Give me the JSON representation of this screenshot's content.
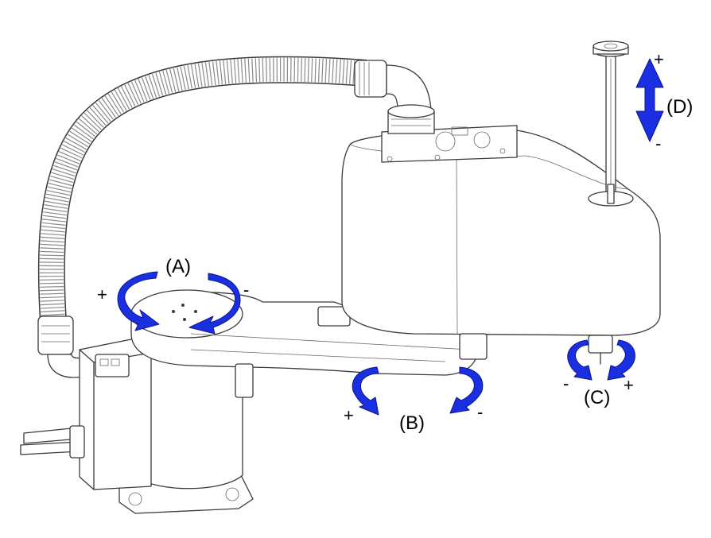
{
  "diagram": {
    "axes": [
      {
        "id": "A",
        "label": "(A)",
        "plus": "+",
        "minus": "-"
      },
      {
        "id": "B",
        "label": "(B)",
        "plus": "+",
        "minus": "-"
      },
      {
        "id": "C",
        "label": "(C)",
        "plus": "+",
        "minus": "-"
      },
      {
        "id": "D",
        "label": "(D)",
        "plus": "+",
        "minus": "-"
      }
    ],
    "colors": {
      "arrow": "#1a2fe0",
      "line": "#3a3a3a",
      "background": "#ffffff"
    }
  }
}
